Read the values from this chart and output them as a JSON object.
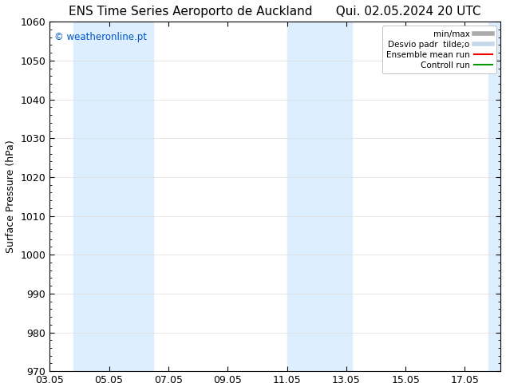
{
  "title_left": "ENS Time Series Aeroporto de Auckland",
  "title_right": "Qui. 02.05.2024 20 UTC",
  "ylabel": "Surface Pressure (hPa)",
  "ylim": [
    970,
    1060
  ],
  "yticks": [
    970,
    980,
    990,
    1000,
    1010,
    1020,
    1030,
    1040,
    1050,
    1060
  ],
  "xtick_positions": [
    3,
    5,
    7,
    9,
    11,
    13,
    15,
    17
  ],
  "xtick_labels": [
    "03.05",
    "05.05",
    "07.05",
    "09.05",
    "11.05",
    "13.05",
    "15.05",
    "17.05"
  ],
  "xlim": [
    3.0,
    18.2
  ],
  "watermark": "© weatheronline.pt",
  "watermark_color": "#0055cc",
  "shaded_bands": [
    {
      "x_start": 3.8,
      "x_end": 5.3
    },
    {
      "x_start": 5.3,
      "x_end": 6.5
    },
    {
      "x_start": 11.0,
      "x_end": 12.0
    },
    {
      "x_start": 12.0,
      "x_end": 13.2
    },
    {
      "x_start": 17.8,
      "x_end": 18.2
    }
  ],
  "band_color": "#ddeeff",
  "legend_entries": [
    {
      "label": "min/max",
      "color": "#aaaaaa",
      "lw": 4
    },
    {
      "label": "Desvio padr  tilde;o",
      "color": "#c5d8ec",
      "lw": 4
    },
    {
      "label": "Ensemble mean run",
      "color": "#ee0000",
      "lw": 1.5
    },
    {
      "label": "Controll run",
      "color": "#009900",
      "lw": 1.5
    }
  ],
  "background_color": "#ffffff",
  "plot_bg_color": "#ffffff",
  "grid_color": "#dddddd",
  "tick_color": "#000000",
  "title_fontsize": 11,
  "label_fontsize": 9,
  "watermark_fontsize": 8.5
}
